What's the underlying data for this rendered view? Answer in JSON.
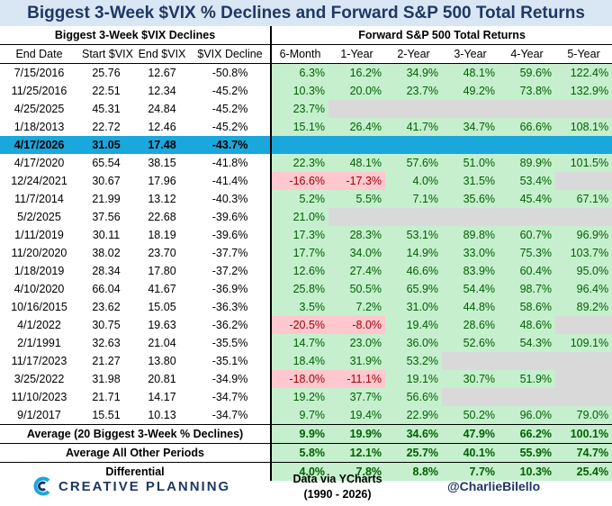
{
  "title": "Biggest 3-Week $VIX % Declines and Forward S&P 500 Total Returns",
  "chart_data": {
    "type": "table",
    "left_section_title": "Biggest 3-Week $VIX Declines",
    "right_section_title": "Forward S&P 500 Total Returns",
    "left_columns": [
      "End Date",
      "Start $VIX",
      "End $VIX",
      "$VIX Decline"
    ],
    "right_columns": [
      "6-Month",
      "1-Year",
      "2-Year",
      "3-Year",
      "4-Year",
      "5-Year"
    ],
    "highlight_date": "4/17/2026",
    "rows": [
      {
        "date": "7/15/2016",
        "start": "25.76",
        "end": "12.67",
        "decline": "-50.8%",
        "returns": [
          "6.3%",
          "16.2%",
          "34.9%",
          "48.1%",
          "59.6%",
          "122.4%"
        ]
      },
      {
        "date": "11/25/2016",
        "start": "22.51",
        "end": "12.34",
        "decline": "-45.2%",
        "returns": [
          "10.3%",
          "20.0%",
          "23.7%",
          "49.2%",
          "73.8%",
          "132.9%"
        ]
      },
      {
        "date": "4/25/2025",
        "start": "45.31",
        "end": "24.84",
        "decline": "-45.2%",
        "returns": [
          "23.7%",
          "",
          "",
          "",
          "",
          ""
        ]
      },
      {
        "date": "1/18/2013",
        "start": "22.72",
        "end": "12.46",
        "decline": "-45.2%",
        "returns": [
          "15.1%",
          "26.4%",
          "41.7%",
          "34.7%",
          "66.6%",
          "108.1%"
        ]
      },
      {
        "date": "4/17/2026",
        "start": "31.05",
        "end": "17.48",
        "decline": "-43.7%",
        "returns": [
          "",
          "",
          "",
          "",
          "",
          ""
        ]
      },
      {
        "date": "4/17/2020",
        "start": "65.54",
        "end": "38.15",
        "decline": "-41.8%",
        "returns": [
          "22.3%",
          "48.1%",
          "57.6%",
          "51.0%",
          "89.9%",
          "101.5%"
        ]
      },
      {
        "date": "12/24/2021",
        "start": "30.67",
        "end": "17.96",
        "decline": "-41.4%",
        "returns": [
          "-16.6%",
          "-17.3%",
          "4.0%",
          "31.5%",
          "53.4%",
          ""
        ]
      },
      {
        "date": "11/7/2014",
        "start": "21.99",
        "end": "13.12",
        "decline": "-40.3%",
        "returns": [
          "5.2%",
          "5.5%",
          "7.1%",
          "35.6%",
          "45.4%",
          "67.1%"
        ]
      },
      {
        "date": "5/2/2025",
        "start": "37.56",
        "end": "22.68",
        "decline": "-39.6%",
        "returns": [
          "21.0%",
          "",
          "",
          "",
          "",
          ""
        ]
      },
      {
        "date": "1/11/2019",
        "start": "30.11",
        "end": "18.19",
        "decline": "-39.6%",
        "returns": [
          "17.3%",
          "28.3%",
          "53.1%",
          "89.8%",
          "60.7%",
          "96.9%"
        ]
      },
      {
        "date": "11/20/2020",
        "start": "38.02",
        "end": "23.70",
        "decline": "-37.7%",
        "returns": [
          "17.7%",
          "34.0%",
          "14.9%",
          "33.0%",
          "75.3%",
          "103.7%"
        ]
      },
      {
        "date": "1/18/2019",
        "start": "28.34",
        "end": "17.80",
        "decline": "-37.2%",
        "returns": [
          "12.6%",
          "27.4%",
          "46.6%",
          "83.9%",
          "60.4%",
          "95.0%"
        ]
      },
      {
        "date": "4/10/2020",
        "start": "66.04",
        "end": "41.67",
        "decline": "-36.9%",
        "returns": [
          "25.8%",
          "50.5%",
          "65.9%",
          "54.4%",
          "98.7%",
          "96.4%"
        ]
      },
      {
        "date": "10/16/2015",
        "start": "23.62",
        "end": "15.05",
        "decline": "-36.3%",
        "returns": [
          "3.5%",
          "7.2%",
          "31.0%",
          "44.8%",
          "58.6%",
          "89.2%"
        ]
      },
      {
        "date": "4/1/2022",
        "start": "30.75",
        "end": "19.63",
        "decline": "-36.2%",
        "returns": [
          "-20.5%",
          "-8.0%",
          "19.4%",
          "28.6%",
          "48.6%",
          ""
        ]
      },
      {
        "date": "2/1/1991",
        "start": "32.63",
        "end": "21.04",
        "decline": "-35.5%",
        "returns": [
          "14.7%",
          "23.0%",
          "36.0%",
          "52.6%",
          "54.3%",
          "109.1%"
        ]
      },
      {
        "date": "11/17/2023",
        "start": "21.27",
        "end": "13.80",
        "decline": "-35.1%",
        "returns": [
          "18.4%",
          "31.9%",
          "53.2%",
          "",
          "",
          ""
        ]
      },
      {
        "date": "3/25/2022",
        "start": "31.98",
        "end": "20.81",
        "decline": "-34.9%",
        "returns": [
          "-18.0%",
          "-11.1%",
          "19.1%",
          "30.7%",
          "51.9%",
          ""
        ]
      },
      {
        "date": "11/10/2023",
        "start": "21.71",
        "end": "14.17",
        "decline": "-34.7%",
        "returns": [
          "19.2%",
          "37.7%",
          "56.6%",
          "",
          "",
          ""
        ]
      },
      {
        "date": "9/1/2017",
        "start": "15.51",
        "end": "10.13",
        "decline": "-34.7%",
        "returns": [
          "9.7%",
          "19.4%",
          "22.9%",
          "50.2%",
          "96.0%",
          "79.0%"
        ]
      }
    ],
    "summary": [
      {
        "label": "Average (20 Biggest 3-Week % Declines)",
        "values": [
          "9.9%",
          "19.9%",
          "34.6%",
          "47.9%",
          "66.2%",
          "100.1%"
        ]
      },
      {
        "label": "Average All Other Periods",
        "values": [
          "5.8%",
          "12.1%",
          "25.7%",
          "40.1%",
          "55.9%",
          "74.7%"
        ]
      },
      {
        "label": "Differential",
        "values": [
          "4.0%",
          "7.8%",
          "8.8%",
          "7.7%",
          "10.3%",
          "25.4%"
        ]
      }
    ]
  },
  "footer": {
    "logo_text": "CREATIVE PLANNING",
    "source_line1": "Data via YCharts",
    "source_line2": "(1990 - 2026)",
    "handle": "@CharlieBilello"
  },
  "colors": {
    "positive_fill": "#c6efce",
    "positive_text": "#006100",
    "negative_fill": "#ffc7ce",
    "negative_text": "#9c0006",
    "na_fill": "#d9d9d9",
    "highlight_fill": "#1aa7dc",
    "title_fill": "#d9e6f4",
    "brand_navy": "#1f3864"
  }
}
